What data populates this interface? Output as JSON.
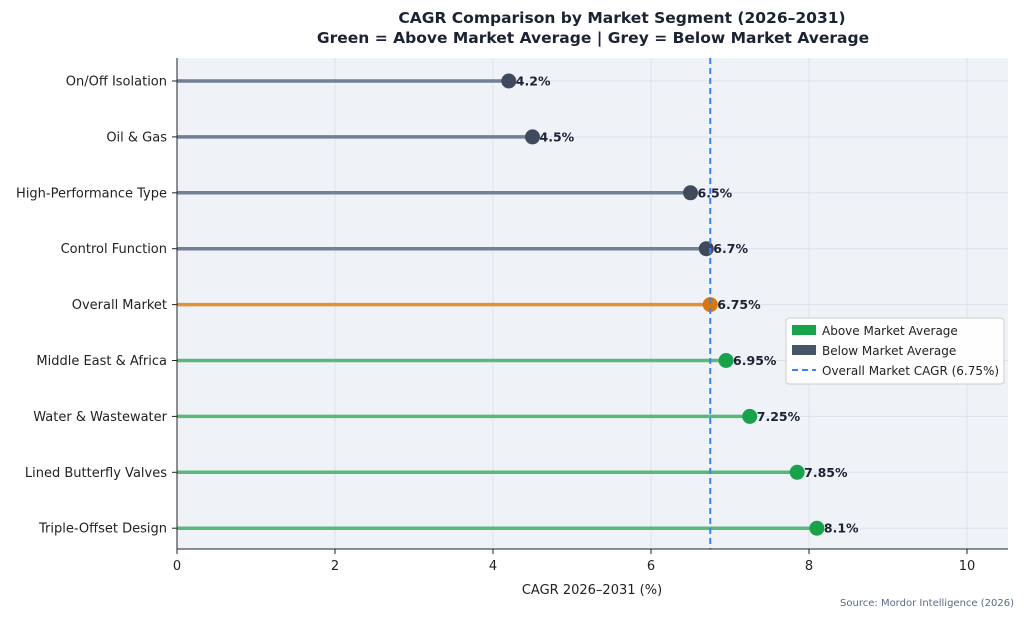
{
  "chart_data": {
    "type": "lollipop",
    "title": "CAGR Comparison by Market Segment (2026–2031)",
    "subtitle": "Green = Above Market Average | Grey = Below Market Average",
    "xlabel": "CAGR 2026–2031 (%)",
    "ylabel": "",
    "xlim": [
      0,
      10.5
    ],
    "xticks": [
      "0",
      "2",
      "4",
      "6",
      "8",
      "10"
    ],
    "grid": true,
    "categories": [
      "On/Off Isolation",
      "Oil & Gas",
      "High-Performance Type",
      "Control Function",
      "Overall Market",
      "Middle East & Africa",
      "Water & Wastewater",
      "Lined Butterfly Valves",
      "Triple-Offset Design"
    ],
    "values": [
      4.2,
      4.5,
      6.5,
      6.7,
      6.75,
      6.95,
      7.25,
      7.85,
      8.1
    ],
    "labels": [
      "4.2%",
      "4.5%",
      "6.5%",
      "6.7%",
      "6.75%",
      "6.95%",
      "7.25%",
      "7.85%",
      "8.1%"
    ],
    "groups": [
      "below",
      "below",
      "below",
      "below",
      "market",
      "above",
      "above",
      "above",
      "above"
    ],
    "reference_line": {
      "value": 6.75,
      "label": "Overall Market CAGR (6.75%)"
    },
    "legend": {
      "placement": "bottom-right",
      "entries": [
        {
          "label": "Above Market Average",
          "color": "#16a34a"
        },
        {
          "label": "Below Market Average",
          "color": "#475569"
        },
        {
          "label": "Overall Market CAGR (6.75%)",
          "color": "#3b82f6"
        }
      ]
    },
    "colors": {
      "above_line": "#5cb87a",
      "above_dot": "#16a34a",
      "below_line": "#718096",
      "below_dot": "#3f4a5c",
      "market_line": "#e0913a",
      "market_dot": "#d97706",
      "reference": "#3b82f6",
      "plot_bg": "#eff3f8"
    }
  },
  "source": "Source: Mordor Intelligence (2026)"
}
